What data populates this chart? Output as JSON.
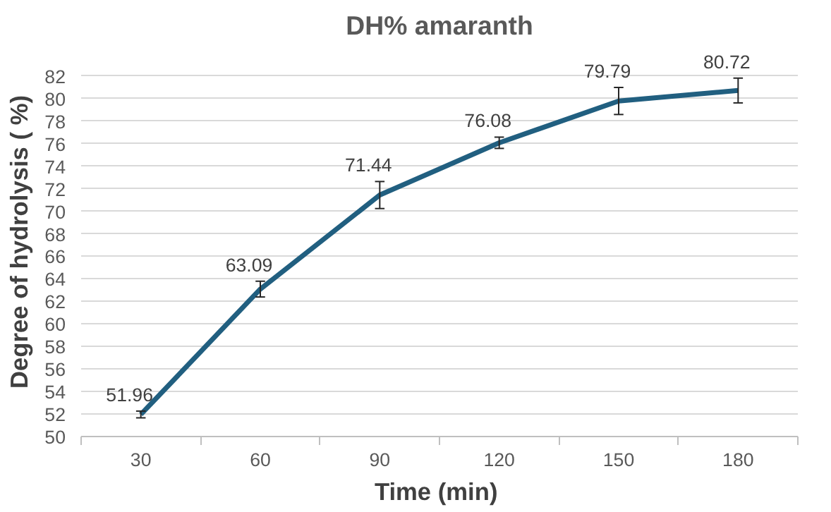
{
  "chart_data": {
    "type": "line",
    "title": "DH% amaranth",
    "xlabel": "Time  (min)",
    "ylabel": "Degree of hydrolysis ( %)",
    "categories": [
      "30",
      "60",
      "90",
      "120",
      "150",
      "180"
    ],
    "series": [
      {
        "color": "#215f80",
        "values": [
          51.96,
          63.09,
          71.44,
          76.08,
          79.79,
          80.72
        ],
        "errors": [
          0.3,
          0.7,
          1.2,
          0.5,
          1.2,
          1.1
        ]
      }
    ],
    "ylim": [
      50,
      82
    ],
    "yticks": [
      50,
      52,
      54,
      56,
      58,
      60,
      62,
      64,
      66,
      68,
      70,
      72,
      74,
      76,
      78,
      80,
      82
    ],
    "grid": "y",
    "marker": "none",
    "line_style": "solid",
    "data_labels": true
  }
}
